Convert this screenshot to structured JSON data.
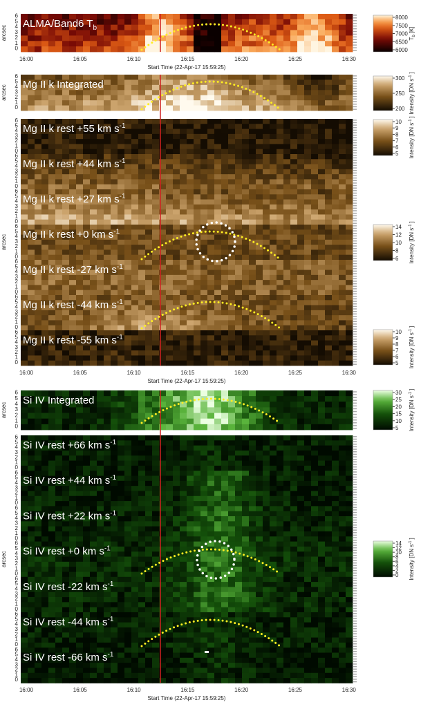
{
  "figure": {
    "y_axis_label": "arcsec",
    "y_ticks": [
      "6",
      "5",
      "4",
      "3",
      "2",
      "1",
      "0"
    ],
    "x_ticks": [
      "16:00",
      "16:05",
      "16:10",
      "16:15",
      "16:20",
      "16:25",
      "16:30"
    ],
    "x_axis_title": "Start Time (22-Apr-17 15:59:25)",
    "panels": [
      {
        "label": "ALMA/Band6 T",
        "sub": "b"
      },
      {
        "label": "Mg II k Integrated"
      },
      {
        "label": "Mg II k rest +55 km s",
        "sup": "-1"
      },
      {
        "label": "Mg II k rest +44 km s",
        "sup": "-1"
      },
      {
        "label": "Mg II k rest +27 km s",
        "sup": "-1"
      },
      {
        "label": "Mg II k rest +0 km s",
        "sup": "-1"
      },
      {
        "label": "Mg II k rest -27 km s",
        "sup": "-1"
      },
      {
        "label": "Mg II k rest -44 km s",
        "sup": "-1"
      },
      {
        "label": "Mg II k rest -55 km s",
        "sup": "-1"
      },
      {
        "label": "Si IV Integrated"
      },
      {
        "label": "Si IV rest +66 km s",
        "sup": "-1"
      },
      {
        "label": "Si IV rest +44 km s",
        "sup": "-1"
      },
      {
        "label": "Si IV rest +22 km s",
        "sup": "-1"
      },
      {
        "label": "Si IV rest +0 km s",
        "sup": "-1"
      },
      {
        "label": "Si IV rest -22 km s",
        "sup": "-1"
      },
      {
        "label": "Si IV rest -44 km s",
        "sup": "-1"
      },
      {
        "label": "Si IV rest -66 km s",
        "sup": "-1"
      }
    ],
    "colorbars": [
      {
        "ticks": [
          "8000",
          "7500",
          "7000",
          "6500",
          "6000"
        ],
        "label": "T",
        "label_sub": "b",
        "label_end": "[K]"
      },
      {
        "ticks": [
          "300",
          "250",
          "200"
        ],
        "label": "Intensity [DN s",
        "label_sup": "-1",
        "label_end": "]"
      },
      {
        "ticks": [
          "10",
          "9",
          "8",
          "7",
          "6",
          "5"
        ],
        "label": "Intensity [DN s",
        "label_sup": "-1",
        "label_end": "]"
      },
      {
        "ticks": [
          "14",
          "12",
          "10",
          "8",
          "6"
        ],
        "label": "Intensity [DN s",
        "label_sup": "-1",
        "label_end": "]"
      },
      {
        "ticks": [
          "10",
          "9",
          "8",
          "7",
          "6",
          "5"
        ],
        "label": "Intensity [DN s",
        "label_sup": "-1",
        "label_end": "]"
      },
      {
        "ticks": [
          "30",
          "25",
          "20",
          "15",
          "10",
          "5"
        ],
        "label": "Intensity [DN s",
        "label_sup": "-1",
        "label_end": "]"
      },
      {
        "ticks": [
          "14",
          "12",
          "10",
          "8",
          "6",
          "4",
          "2",
          "0"
        ],
        "label": "Intensity [DN s",
        "label_sup": "-1",
        "label_end": "]"
      }
    ]
  }
}
